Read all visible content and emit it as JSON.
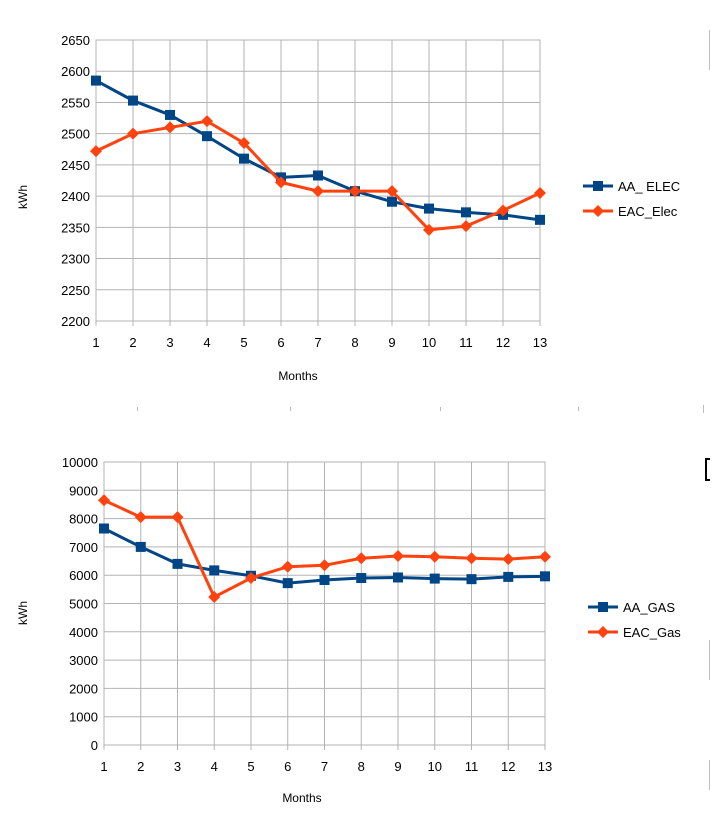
{
  "chart_data": [
    {
      "type": "line",
      "x": [
        1,
        2,
        3,
        4,
        5,
        6,
        7,
        8,
        9,
        10,
        11,
        12,
        13
      ],
      "series": [
        {
          "name": "AA_ ELEC",
          "color": "#004586",
          "marker": "square",
          "values": [
            2585,
            2553,
            2530,
            2496,
            2460,
            2430,
            2433,
            2408,
            2391,
            2380,
            2374,
            2370,
            2362
          ]
        },
        {
          "name": "EAC_Elec",
          "color": "#ff420e",
          "marker": "diamond",
          "values": [
            2472,
            2500,
            2510,
            2520,
            2485,
            2422,
            2408,
            2408,
            2408,
            2346,
            2352,
            2377,
            2405
          ]
        }
      ],
      "title": "",
      "xlabel": "Months",
      "ylabel": "kWh",
      "ylim": [
        2200,
        2650
      ],
      "yticks": [
        2200,
        2250,
        2300,
        2350,
        2400,
        2450,
        2500,
        2550,
        2600,
        2650
      ],
      "grid": true,
      "legend": "right"
    },
    {
      "type": "line",
      "x": [
        1,
        2,
        3,
        4,
        5,
        6,
        7,
        8,
        9,
        10,
        11,
        12,
        13
      ],
      "series": [
        {
          "name": "AA_GAS",
          "color": "#004586",
          "marker": "square",
          "values": [
            7650,
            7000,
            6400,
            6170,
            5980,
            5720,
            5830,
            5900,
            5920,
            5880,
            5860,
            5940,
            5960
          ]
        },
        {
          "name": "EAC_Gas",
          "color": "#ff420e",
          "marker": "diamond",
          "values": [
            8650,
            8050,
            8050,
            5230,
            5900,
            6300,
            6350,
            6600,
            6680,
            6650,
            6600,
            6570,
            6650
          ]
        }
      ],
      "title": "",
      "xlabel": "Months",
      "ylabel": "kWh",
      "ylim": [
        0,
        10000
      ],
      "yticks": [
        0,
        1000,
        2000,
        3000,
        4000,
        5000,
        6000,
        7000,
        8000,
        9000,
        10000
      ],
      "grid": true,
      "legend": "right"
    }
  ]
}
